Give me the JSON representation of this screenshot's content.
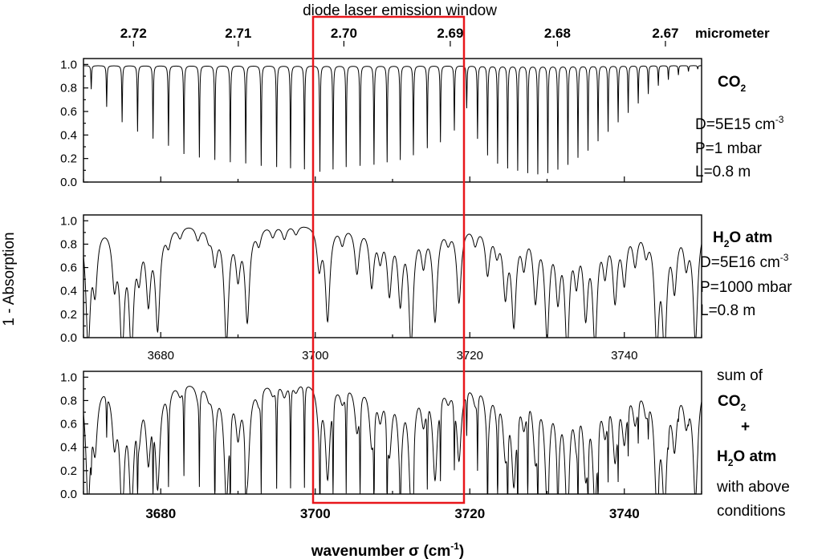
{
  "window_label": "diode laser emission window",
  "top_axis": {
    "unit": "micrometer",
    "ticks": [
      "2.67",
      "2.68",
      "2.69",
      "2.70",
      "2.71",
      "2.72"
    ]
  },
  "y_axis_label": "1 - Absorption",
  "x_axis_label": {
    "text": "wavenumber σ (cm",
    "sup": "-1",
    "close": ")"
  },
  "panels": [
    {
      "title": {
        "base": "CO",
        "sub": "2"
      },
      "conditions": [
        {
          "text": "D=5E15 cm",
          "sup": "-3"
        },
        {
          "text": "P=1 mbar"
        },
        {
          "text": "L=0.8 m"
        }
      ]
    },
    {
      "title": {
        "base": "H",
        "sub": "2",
        "rest": "O atm"
      },
      "conditions": [
        {
          "text": "D=5E16 cm",
          "sup": "-3"
        },
        {
          "text": "P=1000 mbar"
        },
        {
          "text": "L=0.8 m"
        }
      ]
    },
    {
      "legend": {
        "line1": "sum of",
        "co2": {
          "base": "CO",
          "sub": "2"
        },
        "plus": "+",
        "h2o": {
          "base": "H",
          "sub": "2",
          "rest": "O atm"
        },
        "line5": "with above",
        "line6": "conditions"
      }
    }
  ],
  "chart_data": [
    {
      "type": "line",
      "series": [
        {
          "name": "CO2"
        }
      ],
      "xlim": [
        3670,
        3750
      ],
      "ylim": [
        0.0,
        1.05
      ],
      "x_ticks": [
        "3680",
        "3700",
        "3720",
        "3740"
      ],
      "y_ticks": [
        "0.0",
        "0.2",
        "0.4",
        "0.6",
        "0.8",
        "1.0"
      ],
      "x_tick_labels_shown": false,
      "lines": [
        {
          "x": 3671.0,
          "depth": 0.2
        },
        {
          "x": 3673.0,
          "depth": 0.35
        },
        {
          "x": 3675.0,
          "depth": 0.48
        },
        {
          "x": 3677.0,
          "depth": 0.56
        },
        {
          "x": 3679.0,
          "depth": 0.62
        },
        {
          "x": 3681.0,
          "depth": 0.68
        },
        {
          "x": 3683.0,
          "depth": 0.75
        },
        {
          "x": 3685.0,
          "depth": 0.78
        },
        {
          "x": 3687.0,
          "depth": 0.8
        },
        {
          "x": 3689.0,
          "depth": 0.82
        },
        {
          "x": 3691.0,
          "depth": 0.83
        },
        {
          "x": 3693.0,
          "depth": 0.85
        },
        {
          "x": 3695.0,
          "depth": 0.86
        },
        {
          "x": 3696.8,
          "depth": 0.87
        },
        {
          "x": 3698.6,
          "depth": 0.88
        },
        {
          "x": 3700.6,
          "depth": 0.9
        },
        {
          "x": 3702.3,
          "depth": 0.88
        },
        {
          "x": 3704.0,
          "depth": 0.86
        },
        {
          "x": 3705.8,
          "depth": 0.85
        },
        {
          "x": 3707.6,
          "depth": 0.84
        },
        {
          "x": 3709.3,
          "depth": 0.82
        },
        {
          "x": 3711.0,
          "depth": 0.8
        },
        {
          "x": 3712.7,
          "depth": 0.76
        },
        {
          "x": 3714.5,
          "depth": 0.7
        },
        {
          "x": 3716.2,
          "depth": 0.65
        },
        {
          "x": 3718.0,
          "depth": 0.55
        },
        {
          "x": 3719.6,
          "depth": 0.36
        },
        {
          "x": 3721.0,
          "depth": 0.62
        },
        {
          "x": 3722.3,
          "depth": 0.76
        },
        {
          "x": 3723.6,
          "depth": 0.83
        },
        {
          "x": 3724.9,
          "depth": 0.87
        },
        {
          "x": 3726.2,
          "depth": 0.89
        },
        {
          "x": 3727.5,
          "depth": 0.91
        },
        {
          "x": 3728.8,
          "depth": 0.92
        },
        {
          "x": 3730.1,
          "depth": 0.91
        },
        {
          "x": 3731.4,
          "depth": 0.88
        },
        {
          "x": 3732.7,
          "depth": 0.84
        },
        {
          "x": 3734.0,
          "depth": 0.78
        },
        {
          "x": 3735.3,
          "depth": 0.72
        },
        {
          "x": 3736.6,
          "depth": 0.64
        },
        {
          "x": 3737.9,
          "depth": 0.56
        },
        {
          "x": 3739.2,
          "depth": 0.48
        },
        {
          "x": 3740.5,
          "depth": 0.4
        },
        {
          "x": 3741.8,
          "depth": 0.32
        },
        {
          "x": 3743.1,
          "depth": 0.24
        },
        {
          "x": 3744.4,
          "depth": 0.17
        },
        {
          "x": 3745.7,
          "depth": 0.12
        },
        {
          "x": 3747.0,
          "depth": 0.08
        },
        {
          "x": 3748.3,
          "depth": 0.05
        },
        {
          "x": 3749.5,
          "depth": 0.03
        }
      ]
    },
    {
      "type": "line",
      "series": [
        {
          "name": "H2O atm"
        }
      ],
      "xlim": [
        3670,
        3750
      ],
      "ylim": [
        0.0,
        1.05
      ],
      "x_ticks": [
        "3680",
        "3700",
        "3720",
        "3740"
      ],
      "y_ticks": [
        "0.0",
        "0.2",
        "0.4",
        "0.6",
        "0.8",
        "1.0"
      ],
      "lines": [
        {
          "x": 3670.6,
          "depth": 0.99
        },
        {
          "x": 3671.5,
          "depth": 0.5
        },
        {
          "x": 3674.0,
          "depth": 0.45
        },
        {
          "x": 3675.0,
          "depth": 0.98
        },
        {
          "x": 3676.2,
          "depth": 0.98
        },
        {
          "x": 3677.2,
          "depth": 0.35
        },
        {
          "x": 3678.4,
          "depth": 0.6
        },
        {
          "x": 3679.6,
          "depth": 0.85
        },
        {
          "x": 3681.0,
          "depth": 0.15
        },
        {
          "x": 3682.5,
          "depth": 0.1
        },
        {
          "x": 3684.8,
          "depth": 0.12
        },
        {
          "x": 3686.2,
          "depth": 0.1
        },
        {
          "x": 3687.0,
          "depth": 0.3
        },
        {
          "x": 3688.5,
          "depth": 0.99
        },
        {
          "x": 3690.0,
          "depth": 0.4
        },
        {
          "x": 3691.2,
          "depth": 0.8
        },
        {
          "x": 3692.7,
          "depth": 0.15
        },
        {
          "x": 3694.5,
          "depth": 0.1
        },
        {
          "x": 3696.0,
          "depth": 0.12
        },
        {
          "x": 3697.5,
          "depth": 0.08
        },
        {
          "x": 3700.5,
          "depth": 0.35
        },
        {
          "x": 3701.6,
          "depth": 0.8
        },
        {
          "x": 3703.5,
          "depth": 0.15
        },
        {
          "x": 3705.4,
          "depth": 0.4
        },
        {
          "x": 3707.3,
          "depth": 0.5
        },
        {
          "x": 3708.4,
          "depth": 0.25
        },
        {
          "x": 3709.6,
          "depth": 0.55
        },
        {
          "x": 3711.0,
          "depth": 0.62
        },
        {
          "x": 3712.4,
          "depth": 0.99
        },
        {
          "x": 3714.0,
          "depth": 0.3
        },
        {
          "x": 3715.5,
          "depth": 0.8
        },
        {
          "x": 3717.2,
          "depth": 0.12
        },
        {
          "x": 3718.6,
          "depth": 0.65
        },
        {
          "x": 3720.7,
          "depth": 0.15
        },
        {
          "x": 3722.3,
          "depth": 0.4
        },
        {
          "x": 3723.5,
          "depth": 0.2
        },
        {
          "x": 3724.6,
          "depth": 0.55
        },
        {
          "x": 3725.7,
          "depth": 0.8
        },
        {
          "x": 3727.0,
          "depth": 0.3
        },
        {
          "x": 3728.5,
          "depth": 0.6
        },
        {
          "x": 3730.0,
          "depth": 0.9
        },
        {
          "x": 3731.4,
          "depth": 0.55
        },
        {
          "x": 3732.6,
          "depth": 0.99
        },
        {
          "x": 3733.8,
          "depth": 0.4
        },
        {
          "x": 3735.0,
          "depth": 0.7
        },
        {
          "x": 3736.2,
          "depth": 0.95
        },
        {
          "x": 3737.5,
          "depth": 0.35
        },
        {
          "x": 3738.8,
          "depth": 0.6
        },
        {
          "x": 3740.0,
          "depth": 0.45
        },
        {
          "x": 3741.4,
          "depth": 0.3
        },
        {
          "x": 3742.8,
          "depth": 0.2
        },
        {
          "x": 3744.2,
          "depth": 0.95
        },
        {
          "x": 3745.2,
          "depth": 0.97
        },
        {
          "x": 3746.5,
          "depth": 0.5
        },
        {
          "x": 3748.0,
          "depth": 0.3
        },
        {
          "x": 3749.2,
          "depth": 0.99
        }
      ]
    },
    {
      "type": "line",
      "series": [
        {
          "name": "sum of CO2 + H2O atm"
        }
      ],
      "xlim": [
        3670,
        3750
      ],
      "ylim": [
        0.0,
        1.05
      ],
      "x_ticks": [
        "3680",
        "3700",
        "3720",
        "3740"
      ],
      "y_ticks": [
        "0.0",
        "0.2",
        "0.4",
        "0.6",
        "0.8",
        "1.0"
      ],
      "derived_from": "sum of panels 1 and 2"
    }
  ]
}
